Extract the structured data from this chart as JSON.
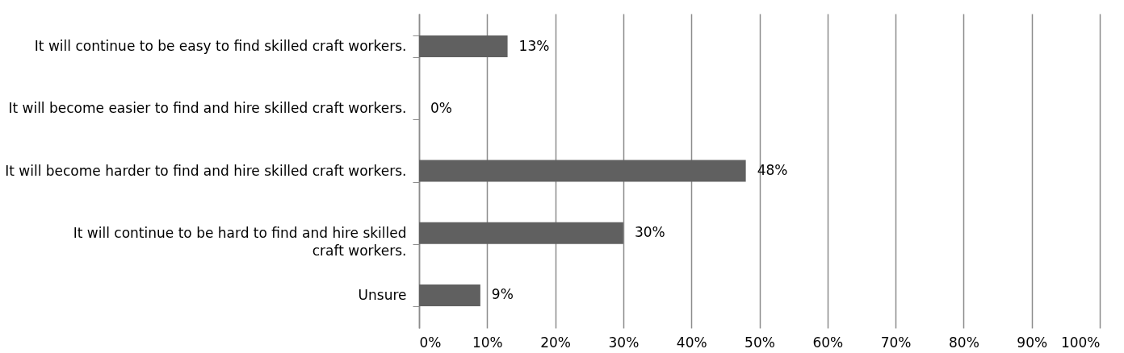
{
  "chart_data": {
    "type": "bar",
    "orientation": "horizontal",
    "categories": [
      "It will continue to be easy to find skilled craft workers.",
      "It will become easier to find and hire skilled craft workers.",
      "It will become harder to find and hire skilled craft workers.",
      "It will continue to be hard to find and hire skilled craft workers.",
      "Unsure"
    ],
    "values": [
      13,
      0,
      48,
      30,
      9
    ],
    "value_labels": [
      "13%",
      "0%",
      "48%",
      "30%",
      "9%"
    ],
    "color": "#606060",
    "xlim": [
      0,
      100
    ],
    "xticks": [
      {
        "value": 0,
        "label": "0%"
      },
      {
        "value": 10,
        "label": "10%"
      },
      {
        "value": 20,
        "label": "20%"
      },
      {
        "value": 30,
        "label": "30%"
      },
      {
        "value": 40,
        "label": "40%"
      },
      {
        "value": 50,
        "label": "50%"
      },
      {
        "value": 60,
        "label": "60%"
      },
      {
        "value": 70,
        "label": "70%"
      },
      {
        "value": 80,
        "label": "80%"
      },
      {
        "value": 90,
        "label": "90%"
      },
      {
        "value": 100,
        "label": "100%"
      }
    ],
    "grid": "x"
  }
}
